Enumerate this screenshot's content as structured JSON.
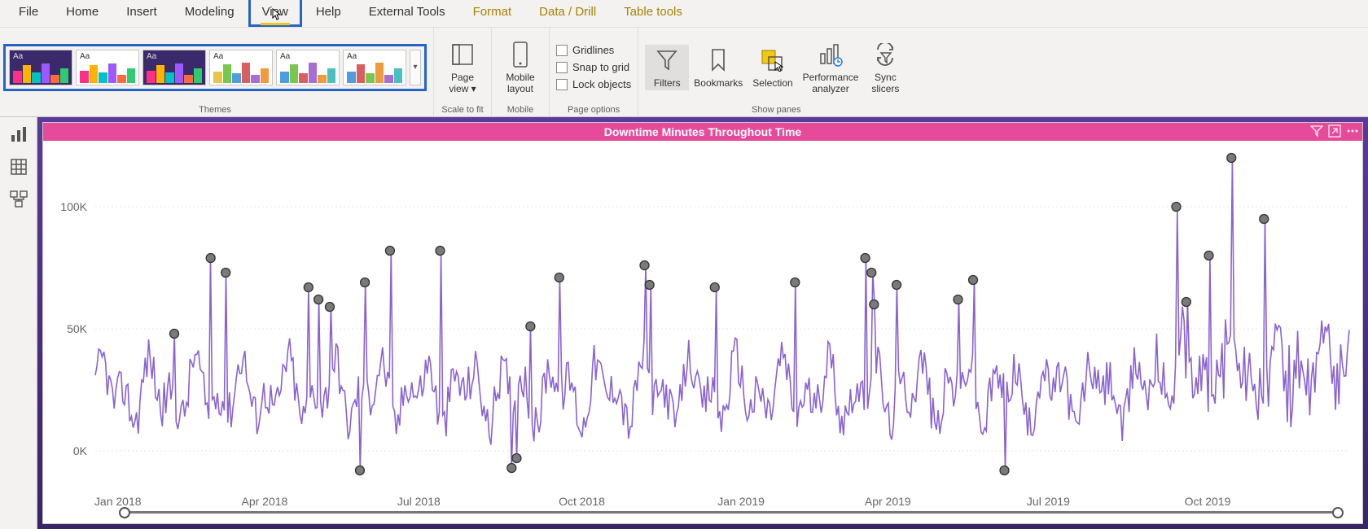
{
  "menu": {
    "file": "File",
    "home": "Home",
    "insert": "Insert",
    "modeling": "Modeling",
    "view": "View",
    "help": "Help",
    "external": "External Tools",
    "format": "Format",
    "data": "Data / Drill",
    "table": "Table tools",
    "active": "view",
    "yellow": [
      "format",
      "data",
      "table"
    ]
  },
  "ribbon": {
    "themes_label": "Themes",
    "themes": [
      {
        "dark": true,
        "bars": [
          "#ff2e88",
          "#ffb300",
          "#00c2c7",
          "#9b59ff",
          "#ff6a3d",
          "#2ecc71"
        ],
        "heights": [
          60,
          85,
          50,
          95,
          40,
          70
        ]
      },
      {
        "dark": false,
        "bars": [
          "#ff2e88",
          "#ffb300",
          "#00c2c7",
          "#9b59ff",
          "#ff6a3d",
          "#2ecc71"
        ],
        "heights": [
          60,
          85,
          50,
          95,
          40,
          70
        ]
      },
      {
        "dark": true,
        "bars": [
          "#ff2e88",
          "#ffb300",
          "#00c2c7",
          "#9b59ff",
          "#ff6a3d",
          "#2ecc71"
        ],
        "heights": [
          60,
          85,
          50,
          95,
          40,
          70
        ]
      },
      {
        "dark": false,
        "bars": [
          "#e8c547",
          "#7ac74f",
          "#4f9dde",
          "#d95f5f",
          "#a66dd4",
          "#f09a3e"
        ],
        "heights": [
          55,
          90,
          45,
          98,
          38,
          72
        ]
      },
      {
        "dark": false,
        "bars": [
          "#4f9dde",
          "#7ac74f",
          "#d95f5f",
          "#a66dd4",
          "#f09a3e",
          "#4bc0c0"
        ],
        "heights": [
          55,
          90,
          45,
          98,
          38,
          72
        ]
      },
      {
        "dark": false,
        "bars": [
          "#4f9dde",
          "#d95f5f",
          "#7ac74f",
          "#f09a3e",
          "#a66dd4",
          "#4bc0c0"
        ],
        "heights": [
          55,
          90,
          45,
          98,
          38,
          72
        ]
      }
    ],
    "scale_label": "Scale to fit",
    "page_view": "Page\nview ▾",
    "mobile_label": "Mobile",
    "mobile_layout": "Mobile\nlayout",
    "page_options_label": "Page options",
    "opt_gridlines": "Gridlines",
    "opt_snap": "Snap to grid",
    "opt_lock": "Lock objects",
    "show_panes_label": "Show panes",
    "filters": "Filters",
    "bookmarks": "Bookmarks",
    "selection": "Selection",
    "perf": "Performance\nanalyzer",
    "sync": "Sync\nslicers"
  },
  "visual": {
    "title": "Downtime Minutes Throughout Time",
    "title_bg": "#e64b9b",
    "title_fg": "#ffffff",
    "chart": {
      "type": "line-with-anomaly-markers",
      "line_color": "#8a63d2",
      "marker_fill": "#7a7a7a",
      "marker_stroke": "#333333",
      "marker_r": 5.5,
      "background": "#ffffff",
      "grid_color": "#e6e6e6",
      "y": {
        "label_color": "#666",
        "ticks": [
          0,
          50000,
          100000
        ],
        "tick_labels": [
          "0K",
          "50K",
          "100K"
        ],
        "ymin": -15000,
        "ymax": 125000,
        "fontsize": 14
      },
      "x": {
        "labels": [
          "Jan 2018",
          "Apr 2018",
          "Jul 2018",
          "Oct 2018",
          "Jan 2019",
          "Apr 2019",
          "Jul 2019",
          "Oct 2019"
        ],
        "frac": [
          0.018,
          0.135,
          0.258,
          0.388,
          0.515,
          0.632,
          0.76,
          0.887
        ],
        "fontsize": 14,
        "color": "#666"
      },
      "n_points": 730,
      "base_mean": 24000,
      "base_amp": 15000,
      "noise": 9000,
      "anomalies": [
        {
          "t": 0.063,
          "v": 48000
        },
        {
          "t": 0.092,
          "v": 79000
        },
        {
          "t": 0.104,
          "v": 73000
        },
        {
          "t": 0.17,
          "v": 67000
        },
        {
          "t": 0.178,
          "v": 62000
        },
        {
          "t": 0.187,
          "v": 59000
        },
        {
          "t": 0.211,
          "v": -8000
        },
        {
          "t": 0.215,
          "v": 69000
        },
        {
          "t": 0.235,
          "v": 82000
        },
        {
          "t": 0.275,
          "v": 82000
        },
        {
          "t": 0.332,
          "v": -7000
        },
        {
          "t": 0.336,
          "v": -3000
        },
        {
          "t": 0.347,
          "v": 51000
        },
        {
          "t": 0.37,
          "v": 71000
        },
        {
          "t": 0.438,
          "v": 76000
        },
        {
          "t": 0.442,
          "v": 68000
        },
        {
          "t": 0.494,
          "v": 67000
        },
        {
          "t": 0.558,
          "v": 69000
        },
        {
          "t": 0.614,
          "v": 79000
        },
        {
          "t": 0.619,
          "v": 73000
        },
        {
          "t": 0.621,
          "v": 60000
        },
        {
          "t": 0.639,
          "v": 68000
        },
        {
          "t": 0.688,
          "v": 62000
        },
        {
          "t": 0.7,
          "v": 70000
        },
        {
          "t": 0.725,
          "v": -8000
        },
        {
          "t": 0.862,
          "v": 100000
        },
        {
          "t": 0.87,
          "v": 61000
        },
        {
          "t": 0.888,
          "v": 80000
        },
        {
          "t": 0.906,
          "v": 120000
        },
        {
          "t": 0.932,
          "v": 95000
        }
      ]
    }
  },
  "canvas_bg_top": "#5a3a9a",
  "canvas_bg_bottom": "#3a2468"
}
